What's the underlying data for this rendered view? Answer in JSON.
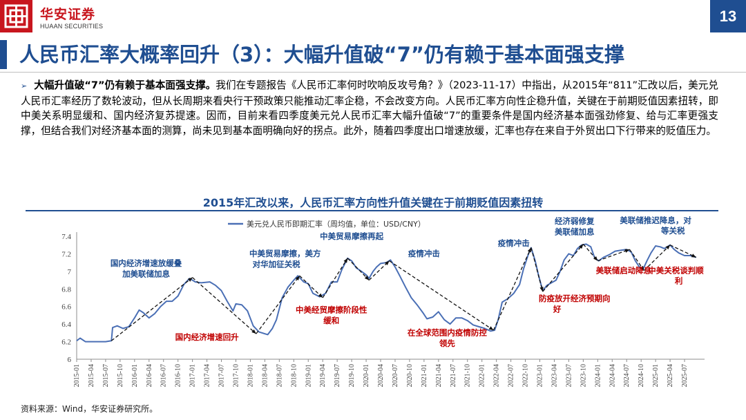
{
  "header": {
    "logo_cn": "华安证券",
    "logo_en": "HUAAN SECURITIES",
    "page_number": "13",
    "brand_red": "#c8161e",
    "brand_blue": "#1f4e91"
  },
  "title": "人民币汇率大概率回升（3）：大幅升值破“7”仍有赖于基本面强支撑",
  "paragraph": {
    "bold_lead": "大幅升值破“7”仍有赖于基本面强支撑。",
    "body": "我们在专题报告《人民币汇率何时吹响反攻号角？》（2023-11-17）中指出，从2015年“811”汇改以后，美元兑人民币汇率经历了数轮波动，但从长周期来看央行干预政策只能推动汇率企稳，不会改变方向。人民币汇率方向性企稳升值，关键在于前期贬值因素扭转，即中美关系明显缓和、国内经济复苏提速。因而，目前来看四季度美元兑人民币汇率大幅升值破“7”的重要条件是国内经济基本面强劲修复、给与汇率更强支撑，但结合我们对经济基本面的测算，尚未见到基本面明确向好的拐点。此外，随着四季度出口增速放缓，汇率也存在来自于外贸出口下行带来的贬值压力。"
  },
  "chart_data": {
    "type": "line",
    "title": "2015年汇改以来，人民币汇率方向性升值关键在于前期贬值因素扭转",
    "legend": "美元兑人民币即期汇率（周均值，单位：USD/CNY）",
    "line_color": "#4a6fb5",
    "ylim": [
      6,
      7.4
    ],
    "yticks": [
      "6",
      "6.2",
      "6.4",
      "6.6",
      "6.8",
      "7",
      "7.2",
      "7.4"
    ],
    "xticks": [
      "2015-01",
      "2015-04",
      "2015-07",
      "2015-10",
      "2016-01",
      "2016-04",
      "2016-07",
      "2016-10",
      "2017-01",
      "2017-04",
      "2017-07",
      "2017-10",
      "2018-01",
      "2018-04",
      "2018-07",
      "2018-10",
      "2019-01",
      "2019-04",
      "2019-07",
      "2019-10",
      "2020-01",
      "2020-04",
      "2020-07",
      "2020-10",
      "2021-01",
      "2021-04",
      "2021-07",
      "2021-10",
      "2022-01",
      "2022-04",
      "2022-07",
      "2022-10",
      "2023-01",
      "2023-04",
      "2023-07",
      "2023-10",
      "2024-01",
      "2024-04",
      "2024-07",
      "2024-10",
      "2025-01",
      "2025-04",
      "2025-07"
    ],
    "x_start": 2015.0,
    "x_end": 2025.75,
    "series": [
      {
        "name": "美元兑人民币即期汇率",
        "points": [
          [
            2015.0,
            6.21
          ],
          [
            2015.06,
            6.24
          ],
          [
            2015.15,
            6.2
          ],
          [
            2015.3,
            6.2
          ],
          [
            2015.5,
            6.2
          ],
          [
            2015.6,
            6.21
          ],
          [
            2015.62,
            6.36
          ],
          [
            2015.7,
            6.38
          ],
          [
            2015.8,
            6.35
          ],
          [
            2015.9,
            6.37
          ],
          [
            2016.0,
            6.47
          ],
          [
            2016.08,
            6.56
          ],
          [
            2016.15,
            6.53
          ],
          [
            2016.25,
            6.47
          ],
          [
            2016.35,
            6.52
          ],
          [
            2016.45,
            6.6
          ],
          [
            2016.55,
            6.66
          ],
          [
            2016.65,
            6.66
          ],
          [
            2016.75,
            6.72
          ],
          [
            2016.85,
            6.85
          ],
          [
            2016.95,
            6.92
          ],
          [
            2017.05,
            6.88
          ],
          [
            2017.15,
            6.87
          ],
          [
            2017.3,
            6.88
          ],
          [
            2017.4,
            6.84
          ],
          [
            2017.5,
            6.78
          ],
          [
            2017.6,
            6.66
          ],
          [
            2017.7,
            6.55
          ],
          [
            2017.75,
            6.63
          ],
          [
            2017.85,
            6.62
          ],
          [
            2017.95,
            6.55
          ],
          [
            2018.05,
            6.38
          ],
          [
            2018.15,
            6.31
          ],
          [
            2018.3,
            6.28
          ],
          [
            2018.38,
            6.35
          ],
          [
            2018.45,
            6.45
          ],
          [
            2018.55,
            6.7
          ],
          [
            2018.65,
            6.82
          ],
          [
            2018.75,
            6.9
          ],
          [
            2018.82,
            6.95
          ],
          [
            2018.92,
            6.88
          ],
          [
            2019.0,
            6.86
          ],
          [
            2019.08,
            6.75
          ],
          [
            2019.2,
            6.71
          ],
          [
            2019.3,
            6.75
          ],
          [
            2019.4,
            6.88
          ],
          [
            2019.5,
            6.88
          ],
          [
            2019.58,
            7.02
          ],
          [
            2019.68,
            7.15
          ],
          [
            2019.75,
            7.12
          ],
          [
            2019.83,
            7.04
          ],
          [
            2019.92,
            7.0
          ],
          [
            2020.0,
            6.96
          ],
          [
            2020.05,
            6.92
          ],
          [
            2020.12,
            7.0
          ],
          [
            2020.18,
            7.05
          ],
          [
            2020.25,
            7.09
          ],
          [
            2020.35,
            7.1
          ],
          [
            2020.42,
            7.13
          ],
          [
            2020.5,
            7.05
          ],
          [
            2020.58,
            6.95
          ],
          [
            2020.68,
            6.82
          ],
          [
            2020.78,
            6.7
          ],
          [
            2020.88,
            6.62
          ],
          [
            2020.98,
            6.53
          ],
          [
            2021.05,
            6.46
          ],
          [
            2021.15,
            6.48
          ],
          [
            2021.25,
            6.54
          ],
          [
            2021.35,
            6.45
          ],
          [
            2021.45,
            6.4
          ],
          [
            2021.55,
            6.47
          ],
          [
            2021.65,
            6.47
          ],
          [
            2021.75,
            6.44
          ],
          [
            2021.85,
            6.39
          ],
          [
            2021.95,
            6.37
          ],
          [
            2022.05,
            6.35
          ],
          [
            2022.15,
            6.32
          ],
          [
            2022.22,
            6.33
          ],
          [
            2022.28,
            6.45
          ],
          [
            2022.35,
            6.65
          ],
          [
            2022.45,
            6.69
          ],
          [
            2022.55,
            6.75
          ],
          [
            2022.65,
            6.85
          ],
          [
            2022.72,
            7.03
          ],
          [
            2022.8,
            7.19
          ],
          [
            2022.85,
            7.27
          ],
          [
            2022.92,
            7.12
          ],
          [
            2022.98,
            6.95
          ],
          [
            2023.05,
            6.78
          ],
          [
            2023.12,
            6.84
          ],
          [
            2023.2,
            6.87
          ],
          [
            2023.28,
            6.9
          ],
          [
            2023.35,
            7.0
          ],
          [
            2023.42,
            7.13
          ],
          [
            2023.5,
            7.2
          ],
          [
            2023.58,
            7.18
          ],
          [
            2023.65,
            7.26
          ],
          [
            2023.72,
            7.3
          ],
          [
            2023.8,
            7.31
          ],
          [
            2023.88,
            7.28
          ],
          [
            2023.95,
            7.15
          ],
          [
            2024.02,
            7.12
          ],
          [
            2024.1,
            7.16
          ],
          [
            2024.2,
            7.19
          ],
          [
            2024.3,
            7.23
          ],
          [
            2024.4,
            7.24
          ],
          [
            2024.5,
            7.25
          ],
          [
            2024.58,
            7.22
          ],
          [
            2024.65,
            7.12
          ],
          [
            2024.72,
            7.05
          ],
          [
            2024.78,
            7.02
          ],
          [
            2024.85,
            7.12
          ],
          [
            2024.92,
            7.21
          ],
          [
            2025.0,
            7.29
          ],
          [
            2025.08,
            7.28
          ],
          [
            2025.15,
            7.26
          ],
          [
            2025.25,
            7.3
          ],
          [
            2025.32,
            7.25
          ],
          [
            2025.4,
            7.21
          ],
          [
            2025.5,
            7.18
          ],
          [
            2025.6,
            7.18
          ],
          [
            2025.7,
            7.16
          ]
        ]
      }
    ],
    "trend_lines": [
      [
        [
          2015.6,
          6.21
        ],
        [
          2017.0,
          6.93
        ],
        [
          2018.1,
          6.29
        ],
        [
          2018.85,
          6.95
        ],
        [
          2019.25,
          6.7
        ],
        [
          2019.68,
          7.15
        ],
        [
          2020.05,
          6.9
        ],
        [
          2020.4,
          7.12
        ],
        [
          2022.2,
          6.33
        ],
        [
          2022.85,
          7.27
        ],
        [
          2023.05,
          6.77
        ],
        [
          2023.75,
          7.31
        ],
        [
          2024.0,
          7.12
        ],
        [
          2024.55,
          7.25
        ],
        [
          2024.8,
          7.01
        ],
        [
          2025.25,
          7.3
        ],
        [
          2025.7,
          7.16
        ]
      ]
    ],
    "annotations": [
      {
        "text": "国内经济增速放缓叠",
        "x": 2016.2,
        "y": 7.06,
        "color": "#1f4e91"
      },
      {
        "text": "加美联储加息",
        "x": 2016.2,
        "y": 6.94,
        "color": "#1f4e91"
      },
      {
        "text": "国内经济增速回升",
        "x": 2017.25,
        "y": 6.22,
        "color": "#c00000"
      },
      {
        "text": "中美贸易摩擦，美方",
        "x": 2018.6,
        "y": 7.17,
        "color": "#1f4e91"
      },
      {
        "text": "对华加征关税",
        "x": 2018.45,
        "y": 7.05,
        "color": "#1f4e91"
      },
      {
        "text": "中美经贸摩擦阶段性",
        "x": 2019.4,
        "y": 6.53,
        "color": "#c00000"
      },
      {
        "text": "缓和",
        "x": 2019.4,
        "y": 6.41,
        "color": "#c00000"
      },
      {
        "text": "中美贸易摩擦再起",
        "x": 2019.75,
        "y": 7.37,
        "color": "#1f4e91"
      },
      {
        "text": "疫情冲击",
        "x": 2021.0,
        "y": 7.17,
        "color": "#1f4e91"
      },
      {
        "text": "在全球范围内疫情防控",
        "x": 2021.4,
        "y": 6.27,
        "color": "#c00000"
      },
      {
        "text": "领先",
        "x": 2021.4,
        "y": 6.15,
        "color": "#c00000"
      },
      {
        "text": "疫情冲击",
        "x": 2022.55,
        "y": 7.29,
        "color": "#1f4e91"
      },
      {
        "text": "防疫放开经济预期向",
        "x": 2023.6,
        "y": 6.66,
        "color": "#c00000"
      },
      {
        "text": "好",
        "x": 2023.3,
        "y": 6.54,
        "color": "#c00000"
      },
      {
        "text": "经济弱修复",
        "x": 2023.6,
        "y": 7.54,
        "color": "#1f4e91"
      },
      {
        "text": "美联储加息",
        "x": 2023.6,
        "y": 7.42,
        "color": "#1f4e91"
      },
      {
        "text": "美联储推迟降息，对",
        "x": 2025.0,
        "y": 7.55,
        "color": "#1f4e91"
      },
      {
        "text": "等关税",
        "x": 2025.3,
        "y": 7.43,
        "color": "#1f4e91"
      },
      {
        "text": "美联储启动降息",
        "x": 2024.45,
        "y": 6.98,
        "color": "#c00000"
      },
      {
        "text": "中美关税谈判顺",
        "x": 2025.35,
        "y": 6.98,
        "color": "#c00000"
      },
      {
        "text": "利",
        "x": 2025.4,
        "y": 6.86,
        "color": "#c00000"
      }
    ]
  },
  "source": "资料来源：Wind，华安证券研究所。"
}
